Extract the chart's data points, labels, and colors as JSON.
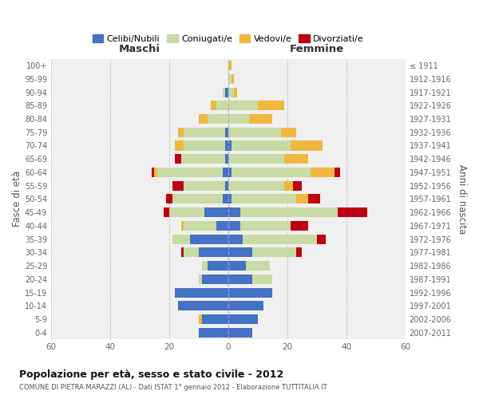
{
  "age_groups": [
    "0-4",
    "5-9",
    "10-14",
    "15-19",
    "20-24",
    "25-29",
    "30-34",
    "35-39",
    "40-44",
    "45-49",
    "50-54",
    "55-59",
    "60-64",
    "65-69",
    "70-74",
    "75-79",
    "80-84",
    "85-89",
    "90-94",
    "95-99",
    "100+"
  ],
  "birth_years": [
    "2007-2011",
    "2002-2006",
    "1997-2001",
    "1992-1996",
    "1987-1991",
    "1982-1986",
    "1977-1981",
    "1972-1976",
    "1967-1971",
    "1962-1966",
    "1957-1961",
    "1952-1956",
    "1947-1951",
    "1942-1946",
    "1937-1941",
    "1932-1936",
    "1927-1931",
    "1922-1926",
    "1917-1921",
    "1912-1916",
    "≤ 1911"
  ],
  "male_celibi": [
    10,
    9,
    17,
    18,
    9,
    7,
    10,
    13,
    4,
    8,
    2,
    1,
    2,
    1,
    1,
    1,
    0,
    0,
    1,
    0,
    0
  ],
  "male_coniugati": [
    0,
    0,
    0,
    0,
    1,
    2,
    5,
    6,
    11,
    12,
    17,
    14,
    22,
    15,
    14,
    14,
    7,
    4,
    1,
    0,
    0
  ],
  "male_vedovi": [
    0,
    1,
    0,
    0,
    0,
    0,
    0,
    0,
    1,
    0,
    0,
    0,
    1,
    0,
    3,
    2,
    3,
    2,
    0,
    0,
    0
  ],
  "male_divorziati": [
    0,
    0,
    0,
    0,
    0,
    0,
    1,
    0,
    0,
    2,
    2,
    4,
    1,
    2,
    0,
    0,
    0,
    0,
    0,
    0,
    0
  ],
  "female_celibi": [
    8,
    10,
    12,
    15,
    8,
    6,
    8,
    5,
    4,
    4,
    1,
    0,
    1,
    0,
    1,
    0,
    0,
    0,
    0,
    0,
    0
  ],
  "female_coniugati": [
    0,
    0,
    0,
    0,
    7,
    8,
    15,
    25,
    17,
    33,
    22,
    19,
    27,
    19,
    20,
    18,
    7,
    10,
    2,
    1,
    0
  ],
  "female_vedovi": [
    0,
    0,
    0,
    0,
    0,
    0,
    0,
    0,
    0,
    0,
    4,
    3,
    8,
    8,
    11,
    5,
    8,
    9,
    1,
    1,
    1
  ],
  "female_divorziati": [
    0,
    0,
    0,
    0,
    0,
    0,
    2,
    3,
    6,
    10,
    4,
    3,
    2,
    0,
    0,
    0,
    0,
    0,
    0,
    0,
    0
  ],
  "colors": {
    "celibi": "#4472c4",
    "coniugati": "#c8dba4",
    "vedovi": "#f0b840",
    "divorziati": "#c00010"
  },
  "xlim": 60,
  "title1": "Popolazione per età, sesso e stato civile - 2012",
  "title2": "COMUNE DI PIETRA MARAZZI (AL) - Dati ISTAT 1° gennaio 2012 - Elaborazione TUTTITALIA.IT",
  "xlabel_left": "Maschi",
  "xlabel_right": "Femmine",
  "ylabel_left": "Fasce di età",
  "ylabel_right": "Anni di nascita",
  "legend_labels": [
    "Celibi/Nubili",
    "Coniugati/e",
    "Vedovi/e",
    "Divorziati/e"
  ],
  "bg_color": "#f0f0f0"
}
